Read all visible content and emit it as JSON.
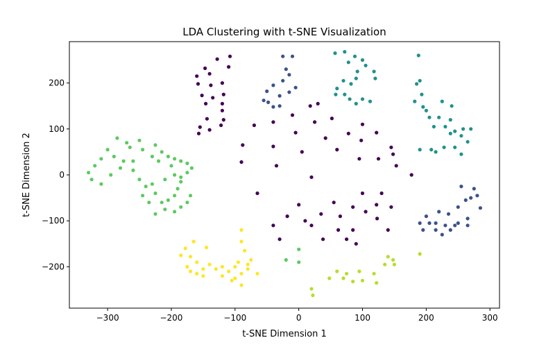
{
  "chart_data": {
    "type": "scatter",
    "title": "LDA Clustering with t-SNE Visualization",
    "xlabel": "t-SNE Dimension 1",
    "ylabel": "t-SNE Dimension 2",
    "xlim": [
      -360,
      315
    ],
    "ylim": [
      -290,
      290
    ],
    "xticks": [
      -300,
      -200,
      -100,
      0,
      100,
      200,
      300
    ],
    "yticks": [
      -200,
      -100,
      0,
      100,
      200
    ],
    "grid": false,
    "legend": "none",
    "series": [
      {
        "color": "#440154",
        "points": [
          [
            -160,
            215
          ],
          [
            -147,
            232
          ],
          [
            -128,
            252
          ],
          [
            -108,
            258
          ],
          [
            -110,
            235
          ],
          [
            -140,
            220
          ],
          [
            -158,
            198
          ],
          [
            -138,
            195
          ],
          [
            -120,
            200
          ],
          [
            -152,
            173
          ],
          [
            -135,
            168
          ],
          [
            -118,
            175
          ],
          [
            -146,
            155
          ],
          [
            -120,
            155
          ],
          [
            -120,
            140
          ],
          [
            -144,
            122
          ],
          [
            -118,
            120
          ],
          [
            -155,
            104
          ],
          [
            -140,
            98
          ],
          [
            -122,
            108
          ],
          [
            -157,
            90
          ],
          [
            -40,
            62
          ],
          [
            -88,
            65
          ],
          [
            -70,
            108
          ],
          [
            -40,
            115
          ],
          [
            -10,
            130
          ],
          [
            18,
            150
          ],
          [
            30,
            155
          ],
          [
            -5,
            92
          ],
          [
            25,
            115
          ],
          [
            52,
            123
          ],
          [
            42,
            80
          ],
          [
            60,
            55
          ],
          [
            78,
            90
          ],
          [
            95,
            35
          ],
          [
            98,
            75
          ],
          [
            100,
            110
          ],
          [
            122,
            92
          ],
          [
            125,
            35
          ],
          [
            145,
            60
          ],
          [
            148,
            45
          ],
          [
            153,
            20
          ],
          [
            177,
            0
          ],
          [
            20,
            -5
          ],
          [
            -35,
            20
          ],
          [
            5,
            50
          ],
          [
            -90,
            28
          ],
          [
            -65,
            -40
          ],
          [
            -40,
            -110
          ],
          [
            -30,
            -140
          ],
          [
            -18,
            -90
          ],
          [
            0,
            -65
          ],
          [
            10,
            -100
          ],
          [
            20,
            -110
          ],
          [
            38,
            -140
          ],
          [
            35,
            -85
          ],
          [
            55,
            -60
          ],
          [
            65,
            -90
          ],
          [
            62,
            -120
          ],
          [
            75,
            -140
          ],
          [
            85,
            -70
          ],
          [
            85,
            -120
          ],
          [
            90,
            -150
          ],
          [
            100,
            -40
          ],
          [
            105,
            -80
          ],
          [
            122,
            -65
          ],
          [
            123,
            -95
          ],
          [
            130,
            -40
          ],
          [
            140,
            -120
          ],
          [
            145,
            -70
          ]
        ]
      },
      {
        "color": "#3b528b",
        "points": [
          [
            -25,
            258
          ],
          [
            -20,
            230
          ],
          [
            -10,
            258
          ],
          [
            -15,
            218
          ],
          [
            -5,
            190
          ],
          [
            -25,
            205
          ],
          [
            -15,
            180
          ],
          [
            -40,
            195
          ],
          [
            -50,
            182
          ],
          [
            -30,
            172
          ],
          [
            -55,
            162
          ],
          [
            -48,
            158
          ],
          [
            -30,
            150
          ],
          [
            -40,
            148
          ],
          [
            200,
            -90
          ],
          [
            220,
            -80
          ],
          [
            235,
            -85
          ],
          [
            250,
            -70
          ],
          [
            255,
            -25
          ],
          [
            275,
            -30
          ],
          [
            280,
            -45
          ],
          [
            285,
            -72
          ],
          [
            265,
            -95
          ],
          [
            265,
            -110
          ],
          [
            245,
            -110
          ],
          [
            238,
            -120
          ],
          [
            225,
            -130
          ],
          [
            215,
            -105
          ],
          [
            205,
            -105
          ],
          [
            190,
            -105
          ],
          [
            195,
            -120
          ],
          [
            215,
            -120
          ],
          [
            230,
            -110
          ],
          [
            250,
            -105
          ],
          [
            270,
            -50
          ],
          [
            262,
            -55
          ]
        ]
      },
      {
        "color": "#21918c",
        "points": [
          [
            57,
            265
          ],
          [
            72,
            268
          ],
          [
            78,
            245
          ],
          [
            88,
            258
          ],
          [
            100,
            250
          ],
          [
            105,
            238
          ],
          [
            92,
            225
          ],
          [
            90,
            210
          ],
          [
            82,
            198
          ],
          [
            70,
            205
          ],
          [
            60,
            188
          ],
          [
            58,
            175
          ],
          [
            72,
            175
          ],
          [
            80,
            165
          ],
          [
            90,
            155
          ],
          [
            100,
            165
          ],
          [
            112,
            160
          ],
          [
            118,
            225
          ],
          [
            120,
            210
          ],
          [
            188,
            260
          ],
          [
            185,
            198
          ],
          [
            190,
            205
          ],
          [
            193,
            175
          ],
          [
            182,
            160
          ],
          [
            200,
            140
          ],
          [
            205,
            125
          ],
          [
            225,
            160
          ],
          [
            240,
            150
          ],
          [
            238,
            120
          ],
          [
            258,
            100
          ],
          [
            270,
            100
          ],
          [
            265,
            72
          ],
          [
            255,
            85
          ],
          [
            245,
            95
          ],
          [
            238,
            90
          ],
          [
            220,
            125
          ],
          [
            230,
            105
          ],
          [
            212,
            105
          ],
          [
            208,
            55
          ],
          [
            215,
            50
          ],
          [
            228,
            60
          ],
          [
            245,
            60
          ],
          [
            255,
            45
          ],
          [
            195,
            148
          ],
          [
            190,
            55
          ]
        ]
      },
      {
        "color": "#5ec962",
        "points": [
          [
            -285,
            80
          ],
          [
            -270,
            70
          ],
          [
            -265,
            60
          ],
          [
            -250,
            75
          ],
          [
            -245,
            55
          ],
          [
            -225,
            65
          ],
          [
            -215,
            50
          ],
          [
            -205,
            40
          ],
          [
            -195,
            35
          ],
          [
            -185,
            30
          ],
          [
            -175,
            25
          ],
          [
            -168,
            15
          ],
          [
            -175,
            5
          ],
          [
            -185,
            -15
          ],
          [
            -190,
            -30
          ],
          [
            -195,
            -45
          ],
          [
            -205,
            -55
          ],
          [
            -210,
            -75
          ],
          [
            -225,
            -85
          ],
          [
            -235,
            -60
          ],
          [
            -245,
            -45
          ],
          [
            -240,
            -25
          ],
          [
            -250,
            -10
          ],
          [
            -260,
            10
          ],
          [
            -275,
            30
          ],
          [
            -290,
            40
          ],
          [
            -300,
            55
          ],
          [
            -310,
            35
          ],
          [
            -320,
            20
          ],
          [
            -330,
            5
          ],
          [
            -325,
            -10
          ],
          [
            -310,
            -20
          ],
          [
            -295,
            0
          ],
          [
            -280,
            15
          ],
          [
            -260,
            30
          ],
          [
            -230,
            40
          ],
          [
            -220,
            30
          ],
          [
            -200,
            20
          ],
          [
            -185,
            -5
          ],
          [
            -170,
            -45
          ],
          [
            -175,
            -60
          ],
          [
            -185,
            -70
          ],
          [
            -195,
            -80
          ],
          [
            -215,
            -60
          ],
          [
            -225,
            -40
          ],
          [
            -230,
            -20
          ],
          [
            -210,
            -10
          ],
          [
            -195,
            0
          ],
          [
            -20,
            -185
          ],
          [
            0,
            -190
          ],
          [
            0,
            -162
          ]
        ]
      },
      {
        "color": "#b5de2b",
        "points": [
          [
            20,
            -248
          ],
          [
            22,
            -262
          ],
          [
            48,
            -225
          ],
          [
            60,
            -210
          ],
          [
            70,
            -225
          ],
          [
            75,
            -215
          ],
          [
            85,
            -232
          ],
          [
            95,
            -210
          ],
          [
            100,
            -230
          ],
          [
            118,
            -215
          ],
          [
            122,
            -235
          ],
          [
            135,
            -195
          ],
          [
            140,
            -178
          ],
          [
            148,
            -185
          ],
          [
            150,
            -195
          ],
          [
            190,
            -172
          ]
        ]
      },
      {
        "color": "#fde725",
        "points": [
          [
            -178,
            -160
          ],
          [
            -165,
            -145
          ],
          [
            -145,
            -158
          ],
          [
            -170,
            -178
          ],
          [
            -185,
            -175
          ],
          [
            -160,
            -190
          ],
          [
            -150,
            -205
          ],
          [
            -140,
            -195
          ],
          [
            -150,
            -220
          ],
          [
            -160,
            -215
          ],
          [
            -170,
            -210
          ],
          [
            -130,
            -205
          ],
          [
            -120,
            -220
          ],
          [
            -110,
            -210
          ],
          [
            -100,
            -225
          ],
          [
            -90,
            -215
          ],
          [
            -80,
            -205
          ],
          [
            -75,
            -185
          ],
          [
            -85,
            -165
          ],
          [
            -90,
            -145
          ],
          [
            -90,
            -120
          ],
          [
            -80,
            -195
          ],
          [
            -95,
            -190
          ],
          [
            -105,
            -230
          ],
          [
            -90,
            -240
          ],
          [
            -100,
            -200
          ],
          [
            -120,
            -200
          ],
          [
            -175,
            -200
          ],
          [
            -65,
            -215
          ]
        ]
      }
    ]
  }
}
